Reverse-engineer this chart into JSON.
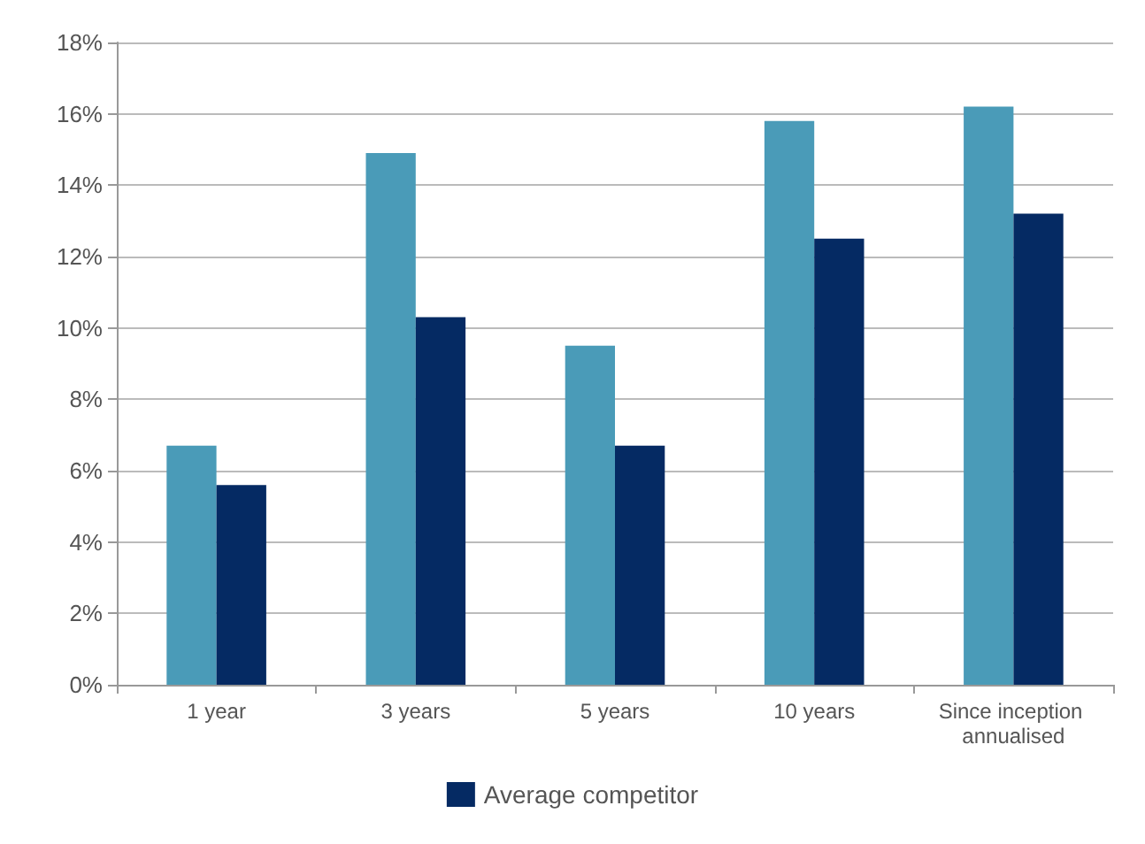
{
  "chart_data": {
    "type": "bar",
    "categories": [
      "1 year",
      "3 years",
      "5 years",
      "10 years",
      "Since inception annualised"
    ],
    "series": [
      {
        "color": "#4a9bb8",
        "values": [
          6.7,
          14.9,
          9.5,
          15.8,
          16.2
        ]
      },
      {
        "name": "Average competitor",
        "color": "#052a63",
        "values": [
          5.6,
          10.3,
          6.7,
          12.5,
          13.2
        ]
      }
    ],
    "ylim": [
      0,
      18
    ],
    "yticks": [
      {
        "value": 0,
        "label": "0%"
      },
      {
        "value": 2,
        "label": "2%"
      },
      {
        "value": 4,
        "label": "4%"
      },
      {
        "value": 6,
        "label": "6%"
      },
      {
        "value": 8,
        "label": "8%"
      },
      {
        "value": 10,
        "label": "10%"
      },
      {
        "value": 12,
        "label": "12%"
      },
      {
        "value": 14,
        "label": "14%"
      },
      {
        "value": 16,
        "label": "16%"
      },
      {
        "value": 18,
        "label": "18%"
      }
    ],
    "grid": "y",
    "legend": "bottom"
  }
}
